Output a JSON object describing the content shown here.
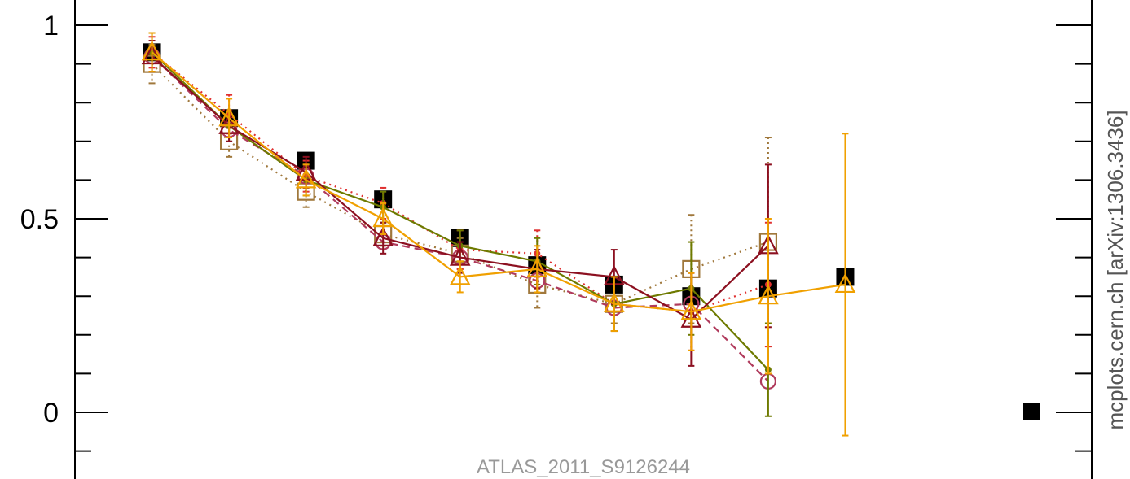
{
  "chart_data": {
    "type": "scatter",
    "title": "",
    "xlabel": "",
    "ylabel": "",
    "analysis_label": "ATLAS_2011_S9126244",
    "source_label": "mcplots.cern.ch [arXiv:1306.3436]",
    "ylim": [
      -0.16,
      1.06
    ],
    "xlim": [
      0,
      13.2
    ],
    "y_ticks_major": [
      {
        "value": 0,
        "label": "0"
      },
      {
        "value": 0.5,
        "label": "0.5"
      },
      {
        "value": 1,
        "label": "1"
      }
    ],
    "y_ticks_minor": [
      -0.1,
      0.1,
      0.2,
      0.3,
      0.4,
      0.6,
      0.7,
      0.8,
      0.9
    ],
    "grid": false,
    "legend": "none",
    "legend_marker_color": "#000000",
    "series": [
      {
        "marker": "filled-square",
        "color": "#000000",
        "line": "none",
        "x": [
          1,
          2,
          3,
          4,
          5,
          6,
          7,
          8,
          9,
          10
        ],
        "y": [
          0.93,
          0.76,
          0.65,
          0.55,
          0.45,
          0.38,
          0.33,
          0.3,
          0.32,
          0.35
        ]
      },
      {
        "marker": "open-square",
        "color": "#a0783c",
        "line": "dotted",
        "x": [
          1,
          2,
          3,
          4,
          5,
          6,
          7,
          8,
          9
        ],
        "y": [
          0.9,
          0.7,
          0.57,
          0.46,
          0.41,
          0.33,
          0.28,
          0.37,
          0.44
        ],
        "err": [
          0.05,
          0.04,
          0.04,
          0.03,
          0.04,
          0.06,
          0.05,
          0.14,
          0.27
        ]
      },
      {
        "marker": "open-circle",
        "color": "#b03a5c",
        "line": "dashed",
        "x": [
          1,
          2,
          3,
          4,
          5,
          6,
          7,
          8,
          9
        ],
        "y": [
          0.92,
          0.73,
          0.61,
          0.44,
          0.4,
          0.34,
          0.27,
          0.28,
          0.08
        ]
      },
      {
        "marker": "dot",
        "color": "#e03030",
        "line": "dotted",
        "x": [
          1,
          2,
          3,
          4,
          5,
          6,
          7,
          8,
          9
        ],
        "y": [
          0.93,
          0.77,
          0.61,
          0.54,
          0.42,
          0.41,
          0.28,
          0.26,
          0.33
        ],
        "err": [
          0.04,
          0.05,
          0.04,
          0.04,
          0.05,
          0.06,
          0.07,
          0.1,
          0.16
        ]
      },
      {
        "marker": "dot",
        "color": "#6e7a00",
        "line": "solid",
        "x": [
          1,
          2,
          3,
          4,
          5,
          6,
          7,
          8,
          9
        ],
        "y": [
          0.93,
          0.74,
          0.6,
          0.53,
          0.43,
          0.39,
          0.28,
          0.32,
          0.11
        ],
        "err": [
          0.05,
          0.04,
          0.04,
          0.04,
          0.04,
          0.06,
          0.07,
          0.12,
          0.12
        ]
      },
      {
        "marker": "open-triangle",
        "color": "#8c1020",
        "line": "solid",
        "x": [
          1,
          2,
          3,
          4,
          5,
          6,
          7,
          8,
          9
        ],
        "y": [
          0.92,
          0.74,
          0.62,
          0.45,
          0.4,
          0.37,
          0.35,
          0.24,
          0.43
        ],
        "err": [
          0.04,
          0.04,
          0.04,
          0.04,
          0.04,
          0.05,
          0.07,
          0.12,
          0.21
        ]
      },
      {
        "marker": "open-triangle",
        "color": "#f0a000",
        "line": "solid",
        "x": [
          1,
          2,
          3,
          4,
          5,
          6,
          7,
          8,
          9,
          10
        ],
        "y": [
          0.93,
          0.76,
          0.6,
          0.5,
          0.35,
          0.37,
          0.28,
          0.26,
          0.3,
          0.33
        ],
        "err": [
          0.05,
          0.05,
          0.04,
          0.04,
          0.04,
          0.06,
          0.07,
          0.1,
          0.2,
          0.39
        ]
      }
    ]
  }
}
